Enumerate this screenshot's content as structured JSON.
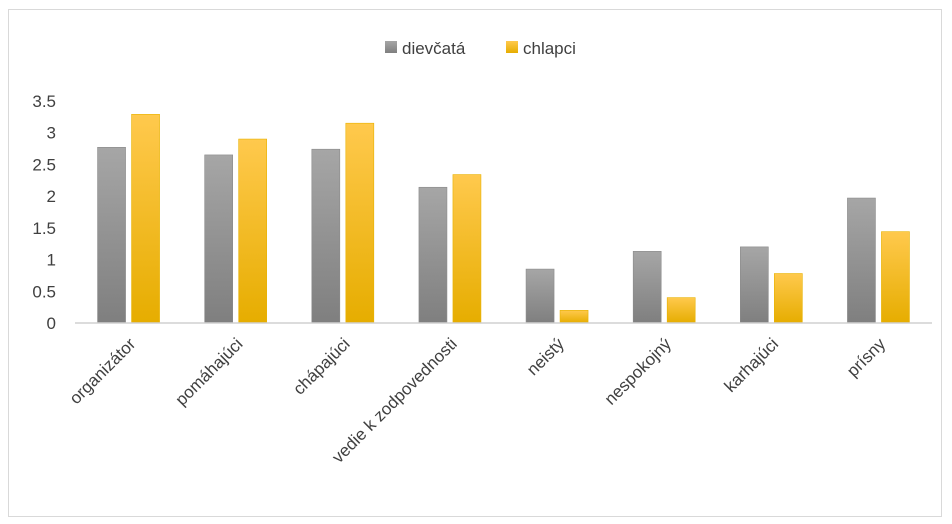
{
  "chart_data": {
    "type": "bar",
    "categories": [
      "organizátor",
      "pomáhajúci",
      "chápajúci",
      "vedie k zodpovednosti",
      "neistý",
      "nespokojný",
      "karhajúci",
      "prísny"
    ],
    "series": [
      {
        "name": "dievčatá",
        "values": [
          2.77,
          2.65,
          2.74,
          2.14,
          0.85,
          1.13,
          1.2,
          1.97
        ],
        "color": "#8c8c8c"
      },
      {
        "name": "chlapci",
        "values": [
          3.29,
          2.9,
          3.15,
          2.34,
          0.2,
          0.4,
          0.78,
          1.44
        ],
        "color": "#ffc000"
      }
    ],
    "title": "",
    "xlabel": "",
    "ylabel": "",
    "ylim": [
      0,
      3.5
    ],
    "yticks": [
      "0",
      "0.5",
      "1",
      "1.5",
      "2",
      "2.5",
      "3",
      "3.5"
    ],
    "grid": false,
    "legend_position": "top-center"
  }
}
